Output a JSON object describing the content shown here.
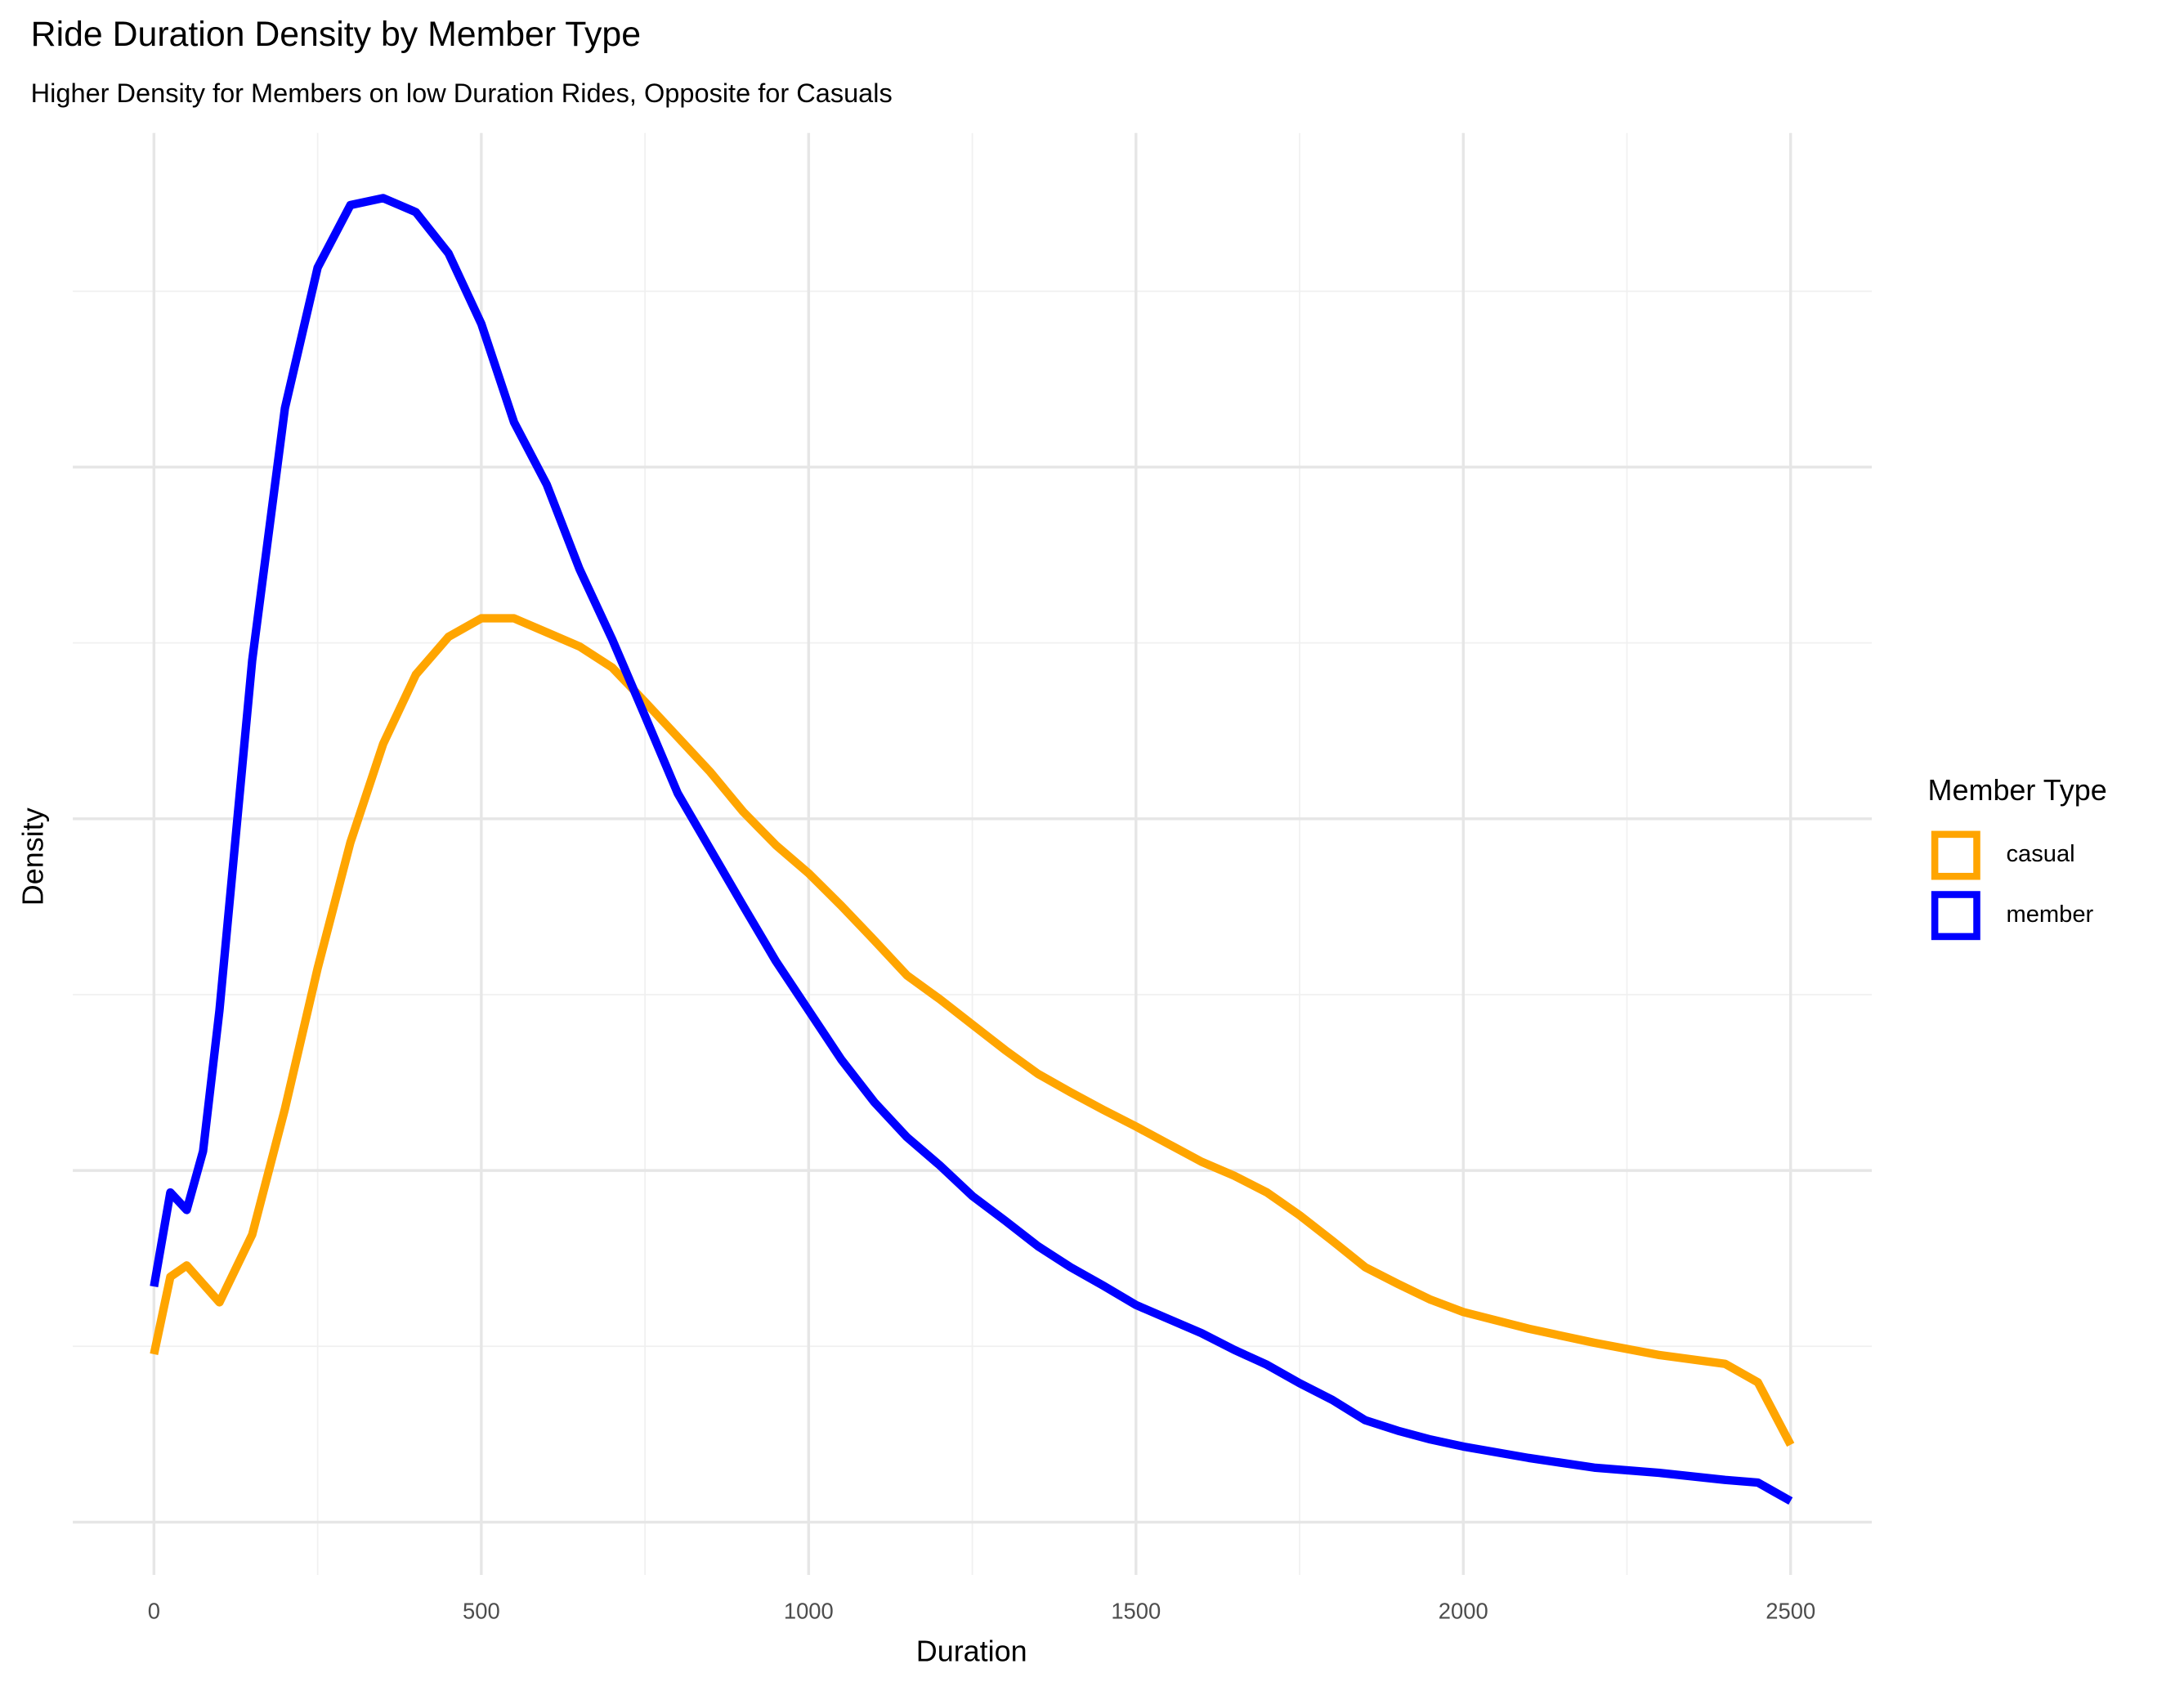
{
  "chart_data": {
    "type": "line",
    "title": "Ride Duration Density by Member Type",
    "subtitle": "Higher Density for Members on low Duration Rides, Opposite for Casuals",
    "x_label": "Duration",
    "y_label": "Density",
    "legend_title": "Member Type",
    "legend_position": "right",
    "grid": true,
    "xlim": [
      -124,
      2624
    ],
    "xticks": [
      0,
      500,
      1000,
      1500,
      2000,
      2500
    ],
    "ylim": [
      -6e-05,
      0.00158
    ],
    "yticks": [
      0,
      0.0004,
      0.0008,
      0.0012
    ],
    "x": [
      0,
      25,
      50,
      75,
      100,
      150,
      200,
      250,
      300,
      350,
      400,
      450,
      500,
      550,
      600,
      650,
      700,
      750,
      800,
      850,
      900,
      950,
      1000,
      1050,
      1100,
      1150,
      1200,
      1250,
      1300,
      1350,
      1400,
      1450,
      1500,
      1550,
      1600,
      1650,
      1700,
      1750,
      1800,
      1850,
      1900,
      1950,
      2000,
      2100,
      2200,
      2300,
      2400,
      2450,
      2500
    ],
    "series": [
      {
        "name": "casual",
        "color": "#ffa500",
        "values": [
          0.000191,
          0.000279,
          0.000292,
          0.000271,
          0.00025,
          0.000327,
          0.00047,
          0.00063,
          0.000773,
          0.000885,
          0.000964,
          0.001007,
          0.001028,
          0.001028,
          0.001012,
          0.000996,
          0.000972,
          0.000933,
          0.000893,
          0.000853,
          0.000808,
          0.00077,
          0.000738,
          0.000701,
          0.000662,
          0.000622,
          0.000595,
          0.000566,
          0.000537,
          0.00051,
          0.000489,
          0.000469,
          0.00045,
          0.00043,
          0.00041,
          0.000394,
          0.000375,
          0.000349,
          0.00032,
          0.00029,
          0.000271,
          0.000253,
          0.000239,
          0.00022,
          0.000204,
          0.00019,
          0.00018,
          0.000159,
          8.8e-05
        ]
      },
      {
        "name": "member",
        "color": "#0000ff",
        "values": [
          0.000268,
          0.000375,
          0.000355,
          0.000422,
          0.000582,
          0.00098,
          0.001267,
          0.001427,
          0.001498,
          0.001506,
          0.00149,
          0.001443,
          0.001363,
          0.001251,
          0.00118,
          0.001084,
          0.001004,
          0.000917,
          0.000829,
          0.000765,
          0.000701,
          0.000638,
          0.000582,
          0.000526,
          0.000478,
          0.000438,
          0.000406,
          0.000371,
          0.000343,
          0.000314,
          0.00029,
          0.000269,
          0.000247,
          0.000231,
          0.000215,
          0.000196,
          0.000179,
          0.000158,
          0.000139,
          0.000116,
          0.000104,
          9.4e-05,
          8.6e-05,
          7.3e-05,
          6.2e-05,
          5.6e-05,
          4.8e-05,
          4.5e-05,
          2.4e-05
        ]
      }
    ]
  }
}
